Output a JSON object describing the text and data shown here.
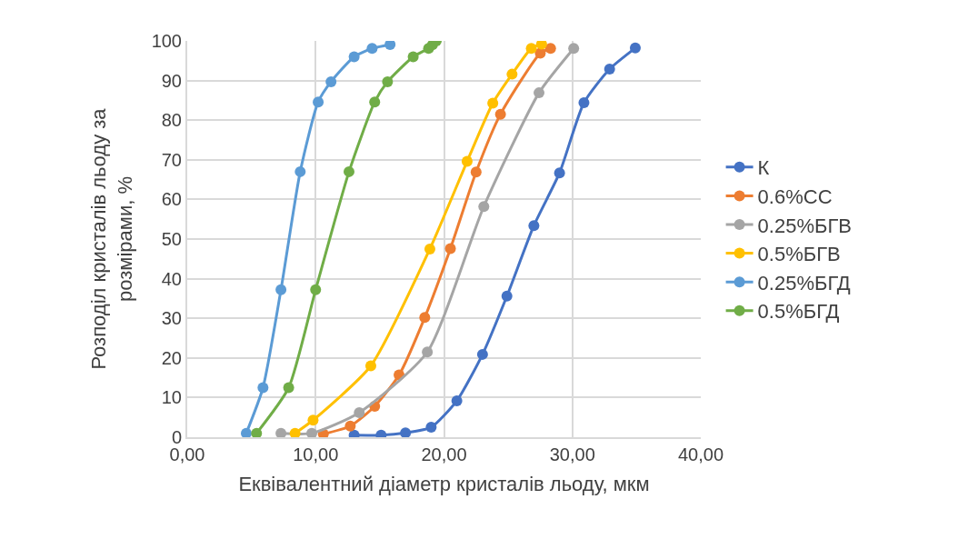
{
  "chart_data": {
    "type": "line",
    "xlabel": "Еквівалентний діаметр кристалів льоду, мкм",
    "ylabel": "Розподіл кристалів льоду за\nрозмірами, %",
    "xlim": [
      0,
      40
    ],
    "xticks": [
      {
        "value": 0,
        "label": "0,00"
      },
      {
        "value": 10,
        "label": "10,00"
      },
      {
        "value": 20,
        "label": "20,00"
      },
      {
        "value": 30,
        "label": "30,00"
      },
      {
        "value": 40,
        "label": "40,00"
      }
    ],
    "ylim": [
      0,
      100
    ],
    "yticks": [
      0,
      10,
      20,
      30,
      40,
      50,
      60,
      70,
      80,
      90,
      100
    ],
    "grid": true,
    "legend": "right",
    "marker": "circle",
    "line_style": "solid",
    "series": [
      {
        "name": "К",
        "color": "#4472c4",
        "x": [
          13.0,
          15.1,
          17.0,
          19.0,
          21.0,
          23.0,
          24.9,
          27.0,
          29.0,
          30.9,
          32.9,
          34.9
        ],
        "values": [
          0.5,
          0.5,
          1.1,
          2.5,
          9.2,
          20.9,
          35.6,
          53.4,
          66.7,
          84.4,
          92.9,
          98.2
        ]
      },
      {
        "name": "0.6%СС",
        "color": "#ed7d31",
        "x": [
          10.6,
          12.7,
          14.6,
          16.5,
          18.5,
          20.5,
          22.5,
          24.4,
          27.5,
          28.3
        ],
        "values": [
          0.8,
          2.8,
          7.8,
          15.7,
          30.2,
          47.6,
          66.9,
          81.5,
          96.9,
          98.1
        ]
      },
      {
        "name": "0.25%БГВ",
        "color": "#a5a5a5",
        "x": [
          7.3,
          9.7,
          13.4,
          18.7,
          23.1,
          27.4,
          30.1
        ],
        "values": [
          1.0,
          1.0,
          6.2,
          21.5,
          58.2,
          86.9,
          98.1
        ]
      },
      {
        "name": "0.5%БГВ",
        "color": "#ffc000",
        "x": [
          8.4,
          9.8,
          14.3,
          18.9,
          21.8,
          23.8,
          25.3,
          26.8,
          27.6
        ],
        "values": [
          1.0,
          4.3,
          18.0,
          47.5,
          69.6,
          84.3,
          91.6,
          98.1,
          99.2
        ]
      },
      {
        "name": "0.25%БГД",
        "color": "#5b9bd5",
        "x": [
          4.6,
          5.9,
          7.3,
          8.8,
          10.2,
          11.2,
          13.0,
          14.4,
          15.8
        ],
        "values": [
          1.0,
          12.5,
          37.2,
          67.0,
          84.6,
          89.7,
          96.0,
          98.1,
          99.1
        ]
      },
      {
        "name": "0.5%БГД",
        "color": "#70ad47",
        "x": [
          5.4,
          7.9,
          10.0,
          12.6,
          14.6,
          15.6,
          17.6,
          18.8,
          19.1,
          19.4
        ],
        "values": [
          1.0,
          12.5,
          37.2,
          67.0,
          84.6,
          89.7,
          96.0,
          98.1,
          99.0,
          100
        ]
      }
    ]
  }
}
